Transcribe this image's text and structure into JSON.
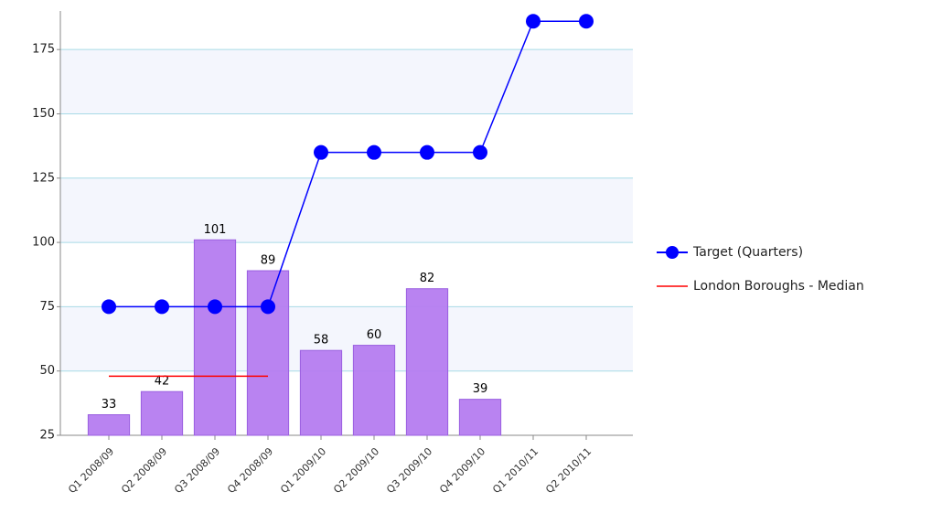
{
  "chart_data": {
    "type": "bar",
    "categories": [
      "Q1 2008/09",
      "Q2 2008/09",
      "Q3 2008/09",
      "Q4 2008/09",
      "Q1 2009/10",
      "Q2 2009/10",
      "Q3 2009/10",
      "Q4 2009/10",
      "Q1 2010/11",
      "Q2 2010/11"
    ],
    "series": [
      {
        "type": "bar",
        "color": "#b57cf0",
        "values": [
          33,
          42,
          101,
          89,
          58,
          60,
          82,
          39,
          null,
          null
        ]
      },
      {
        "type": "line",
        "name": "Target (Quarters)",
        "color": "#0000ff",
        "markers": true,
        "values": [
          75,
          75,
          75,
          75,
          135,
          135,
          135,
          135,
          186,
          186
        ]
      },
      {
        "type": "line",
        "name": "London Boroughs - Median",
        "color": "#ff0000",
        "markers": false,
        "values": [
          48,
          48,
          48,
          48,
          null,
          null,
          null,
          null,
          null,
          null
        ]
      }
    ],
    "ylim": [
      25,
      190
    ],
    "yticks": [
      25,
      50,
      75,
      100,
      125,
      150,
      175
    ],
    "grid": true,
    "legend": "right"
  }
}
